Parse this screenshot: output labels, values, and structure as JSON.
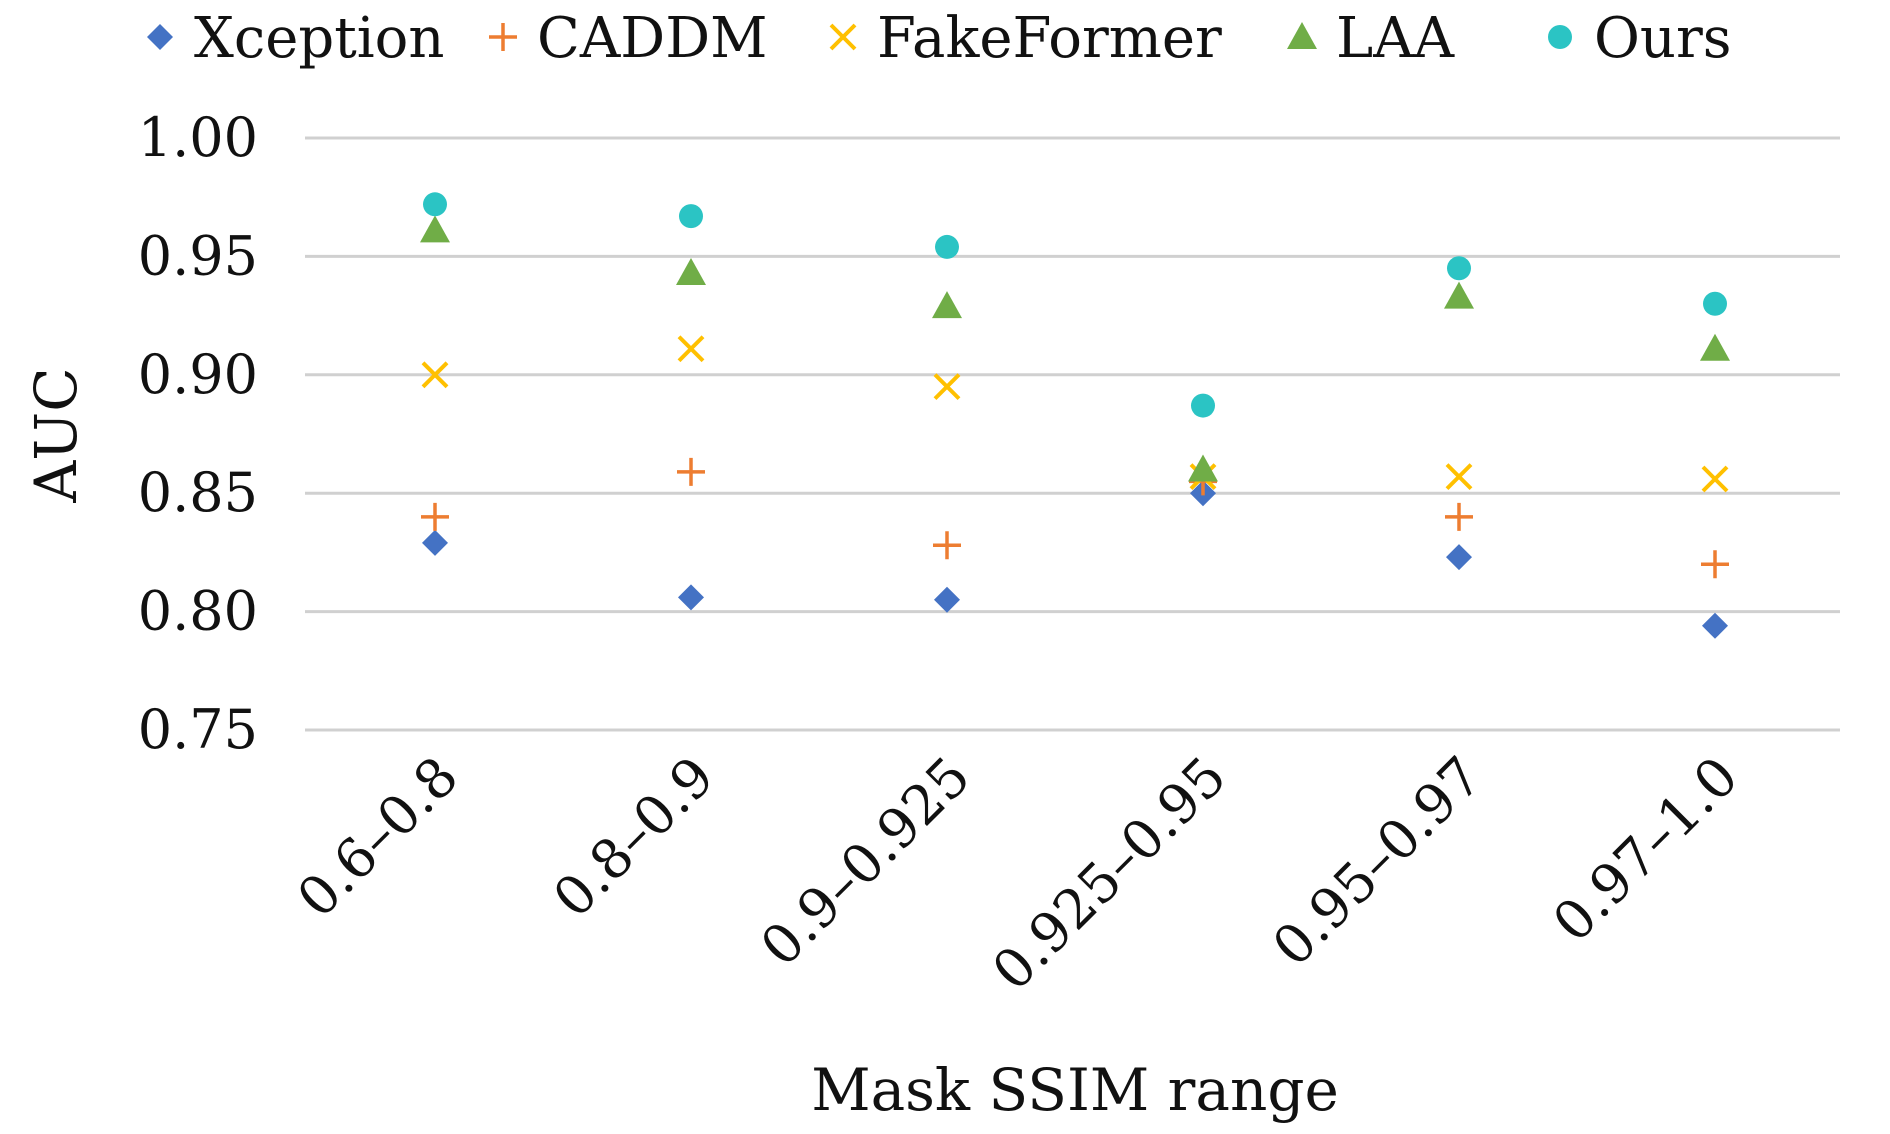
{
  "chart_data": {
    "type": "scatter",
    "title": "",
    "xlabel": "Mask SSIM range",
    "ylabel": "AUC",
    "categories": [
      "0.6–0.8",
      "0.8–0.9",
      "0.9–0.925",
      "0.925–0.95",
      "0.95–0.97",
      "0.97–1.0"
    ],
    "ylim": [
      0.75,
      1.0
    ],
    "yticks": [
      "0.75",
      "0.80",
      "0.85",
      "0.90",
      "0.95",
      "1.00"
    ],
    "grid": "horizontal",
    "legend_position": "top",
    "series": [
      {
        "name": "Xception",
        "marker": "diamond",
        "color": "#4472C4",
        "values": [
          0.829,
          0.806,
          0.805,
          0.85,
          0.823,
          0.794
        ]
      },
      {
        "name": "CADDM",
        "marker": "plus",
        "color": "#ED7D31",
        "values": [
          0.84,
          0.859,
          0.828,
          0.855,
          0.84,
          0.82
        ]
      },
      {
        "name": "FakeFormer",
        "marker": "cross",
        "color": "#FFC000",
        "values": [
          0.9,
          0.911,
          0.895,
          0.857,
          0.857,
          0.856
        ]
      },
      {
        "name": "LAA",
        "marker": "triangle",
        "color": "#70AD47",
        "values": [
          0.961,
          0.943,
          0.929,
          0.86,
          0.933,
          0.911
        ]
      },
      {
        "name": "Ours",
        "marker": "circle",
        "color": "#2BC4C4",
        "values": [
          0.972,
          0.967,
          0.954,
          0.887,
          0.945,
          0.93
        ]
      }
    ]
  }
}
